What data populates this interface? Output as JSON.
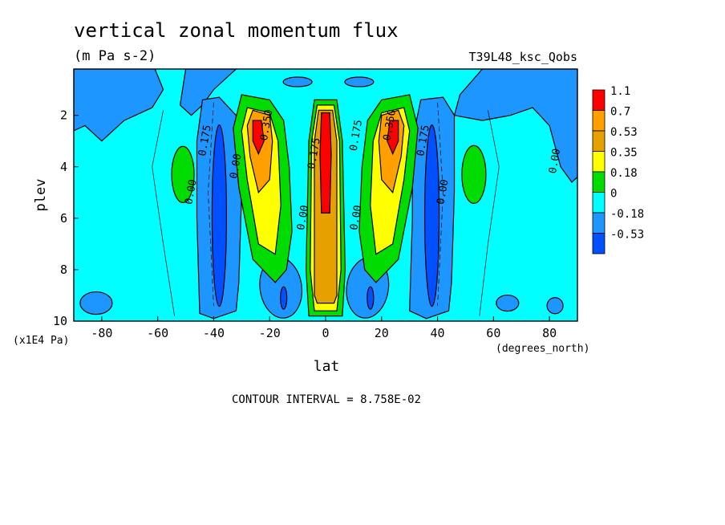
{
  "chart_data": {
    "type": "heatmap",
    "title": "vertical zonal momentum flux",
    "units": "(m Pa s-2)",
    "dataset": "T39L48_ksc_Qobs",
    "xlabel": "lat",
    "xunits": "(degrees_north)",
    "ylabel": "plev",
    "yunits": "(x1E4 Pa)",
    "xlim": [
      -90,
      90
    ],
    "ylim": [
      10,
      0.2
    ],
    "xticks": [
      -80,
      -60,
      -40,
      -20,
      0,
      20,
      40,
      60,
      80
    ],
    "xtick_labels": [
      "-80",
      "-60",
      "-40",
      "-20",
      "0",
      "20",
      "40",
      "60",
      "80"
    ],
    "yticks": [
      2,
      4,
      6,
      8,
      10
    ],
    "ytick_labels": [
      "2",
      "4",
      "6",
      "8",
      "10"
    ],
    "contour_interval": "CONTOUR INTERVAL = 8.758E-02",
    "legend": {
      "placement": "right",
      "levels": [
        "1.1",
        "0.7",
        "0.53",
        "0.35",
        "0.18",
        "0",
        "-0.18",
        "-0.53"
      ],
      "colors": [
        "#ff0000",
        "#ffa000",
        "#e6a000",
        "#ffff00",
        "#00dc00",
        "#00ffff",
        "#1e96ff",
        "#0050ff"
      ]
    },
    "background_color": "#00ffff",
    "features": [
      {
        "kind": "jet",
        "lat": 0,
        "lat_width": 5,
        "p_top": 1.5,
        "p_bottom": 9.9,
        "peak": 1.1,
        "note": "equatorial positive column, max near 3-6"
      },
      {
        "kind": "lobe",
        "lat": -24,
        "lat_width": 9,
        "p_top": 1.3,
        "p_bottom": 8.0,
        "peak": 0.9,
        "note": "positive lobe tilted toward equator"
      },
      {
        "kind": "lobe",
        "lat": 24,
        "lat_width": 9,
        "p_top": 1.3,
        "p_bottom": 8.0,
        "peak": 0.9,
        "note": "positive lobe tilted toward equator"
      },
      {
        "kind": "trough",
        "lat": -38,
        "lat_width": 6,
        "p_top": 1.5,
        "p_bottom": 9.8,
        "peak": -0.53
      },
      {
        "kind": "trough",
        "lat": 38,
        "lat_width": 6,
        "p_top": 1.5,
        "p_bottom": 9.8,
        "peak": -0.53
      },
      {
        "kind": "blob",
        "lat": -50,
        "p": 4.3,
        "peak": 0.18
      },
      {
        "kind": "blob",
        "lat": 52,
        "p": 4.3,
        "peak": 0.18
      },
      {
        "kind": "blob",
        "lat": -15,
        "p": 9.1,
        "peak": -0.4
      },
      {
        "kind": "blob",
        "lat": 16,
        "p": 9.1,
        "peak": -0.4
      }
    ],
    "contour_labels": [
      {
        "text": "0.350",
        "lat": -20,
        "p": 2.4
      },
      {
        "text": "0.175",
        "lat": -42,
        "p": 3.0
      },
      {
        "text": "0.00",
        "lat": -47,
        "p": 5.0
      },
      {
        "text": "0.00",
        "lat": -31,
        "p": 4.0
      },
      {
        "text": "0.00",
        "lat": -7,
        "p": 6.0
      },
      {
        "text": "0.175",
        "lat": -3,
        "p": 3.5
      },
      {
        "text": "0.175",
        "lat": 12,
        "p": 2.8
      },
      {
        "text": "0.350",
        "lat": 24,
        "p": 2.4
      },
      {
        "text": "0.00",
        "lat": 12,
        "p": 6.0
      },
      {
        "text": "0.175",
        "lat": 36,
        "p": 3.0
      },
      {
        "text": "0.00",
        "lat": 43,
        "p": 5.0
      },
      {
        "text": "0.00",
        "lat": 83,
        "p": 3.8
      }
    ]
  }
}
